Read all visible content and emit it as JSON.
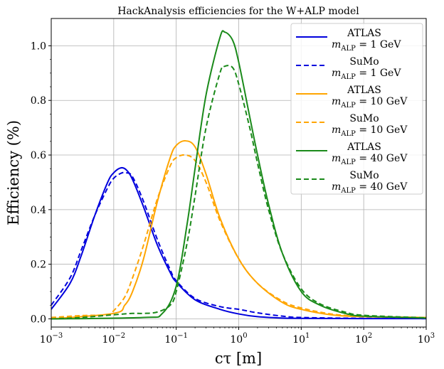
{
  "chart_data": {
    "type": "line",
    "title": "HackAnalysis efficiencies for the W+ALP model",
    "xlabel": "cτ [m]",
    "ylabel": "Efficiency (%)",
    "xscale": "log",
    "xlim": [
      0.001,
      1000
    ],
    "ylim": [
      -0.03,
      1.1
    ],
    "grid": true,
    "legend_position": "top-right",
    "x_ticks": [
      {
        "value": 0.001,
        "base": "10",
        "exp": "−3"
      },
      {
        "value": 0.01,
        "base": "10",
        "exp": "−2"
      },
      {
        "value": 0.1,
        "base": "10",
        "exp": "−1"
      },
      {
        "value": 1,
        "base": "10",
        "exp": "0"
      },
      {
        "value": 10,
        "base": "10",
        "exp": "1"
      },
      {
        "value": 100,
        "base": "10",
        "exp": "2"
      },
      {
        "value": 1000,
        "base": "10",
        "exp": "3"
      }
    ],
    "y_ticks": [
      {
        "value": 0.0,
        "label": "0.0"
      },
      {
        "value": 0.2,
        "label": "0.2"
      },
      {
        "value": 0.4,
        "label": "0.4"
      },
      {
        "value": 0.6,
        "label": "0.6"
      },
      {
        "value": 0.8,
        "label": "0.8"
      },
      {
        "value": 1.0,
        "label": "1.0"
      }
    ],
    "series": [
      {
        "name_main": "ATLAS",
        "name_mass": "1 GeV",
        "color": "#0000dd",
        "style": "solid",
        "x": [
          0.001,
          0.002,
          0.003,
          0.005,
          0.008,
          0.01,
          0.013,
          0.016,
          0.02,
          0.03,
          0.05,
          0.08,
          0.1,
          0.2,
          0.5,
          1,
          2,
          5,
          10,
          100,
          1000
        ],
        "y": [
          0.035,
          0.13,
          0.23,
          0.38,
          0.5,
          0.535,
          0.553,
          0.545,
          0.51,
          0.41,
          0.27,
          0.17,
          0.135,
          0.07,
          0.035,
          0.018,
          0.008,
          0.003,
          0.002,
          0.001,
          0.001
        ]
      },
      {
        "name_main": "SuMo",
        "name_mass": "1 GeV",
        "color": "#0000dd",
        "style": "dashed",
        "x": [
          0.001,
          0.002,
          0.003,
          0.005,
          0.008,
          0.01,
          0.013,
          0.016,
          0.02,
          0.03,
          0.05,
          0.08,
          0.1,
          0.2,
          0.5,
          1,
          2,
          5,
          10,
          100,
          1000
        ],
        "y": [
          0.05,
          0.15,
          0.25,
          0.38,
          0.48,
          0.515,
          0.533,
          0.535,
          0.52,
          0.43,
          0.29,
          0.18,
          0.14,
          0.075,
          0.045,
          0.035,
          0.022,
          0.01,
          0.005,
          0.002,
          0.001
        ]
      },
      {
        "name_main": "ATLAS",
        "name_mass": "10 GeV",
        "color": "#ffa500",
        "style": "solid",
        "x": [
          0.001,
          0.01,
          0.015,
          0.02,
          0.03,
          0.05,
          0.08,
          0.1,
          0.14,
          0.2,
          0.3,
          0.5,
          1,
          2,
          5,
          10,
          30,
          100,
          1000
        ],
        "y": [
          0.0,
          0.02,
          0.05,
          0.1,
          0.22,
          0.43,
          0.59,
          0.635,
          0.652,
          0.63,
          0.53,
          0.37,
          0.22,
          0.13,
          0.06,
          0.035,
          0.015,
          0.008,
          0.005
        ]
      },
      {
        "name_main": "SuMo",
        "name_mass": "10 GeV",
        "color": "#ffa500",
        "style": "dashed",
        "x": [
          0.001,
          0.003,
          0.008,
          0.01,
          0.015,
          0.02,
          0.03,
          0.05,
          0.08,
          0.1,
          0.14,
          0.2,
          0.3,
          0.5,
          1,
          2,
          5,
          10,
          30,
          100,
          1000
        ],
        "y": [
          0.005,
          0.012,
          0.015,
          0.03,
          0.08,
          0.15,
          0.27,
          0.44,
          0.56,
          0.59,
          0.6,
          0.58,
          0.5,
          0.36,
          0.22,
          0.13,
          0.065,
          0.04,
          0.018,
          0.009,
          0.005
        ]
      },
      {
        "name_main": "ATLAS",
        "name_mass": "40 GeV",
        "color": "#1a8a1a",
        "style": "solid",
        "x": [
          0.001,
          0.03,
          0.06,
          0.1,
          0.15,
          0.2,
          0.3,
          0.5,
          0.6,
          0.8,
          1,
          1.5,
          2,
          3,
          5,
          10,
          20,
          50,
          100,
          1000
        ],
        "y": [
          0.0,
          0.005,
          0.02,
          0.12,
          0.35,
          0.55,
          0.82,
          1.03,
          1.05,
          1.02,
          0.94,
          0.74,
          0.6,
          0.42,
          0.24,
          0.1,
          0.05,
          0.02,
          0.01,
          0.003
        ]
      },
      {
        "name_main": "SuMo",
        "name_mass": "40 GeV",
        "color": "#1a8a1a",
        "style": "dashed",
        "x": [
          0.001,
          0.003,
          0.01,
          0.02,
          0.03,
          0.05,
          0.08,
          0.1,
          0.15,
          0.2,
          0.3,
          0.5,
          0.6,
          0.8,
          1,
          1.5,
          2,
          3,
          5,
          10,
          20,
          50,
          100,
          1000
        ],
        "y": [
          0.0,
          0.005,
          0.015,
          0.02,
          0.02,
          0.025,
          0.05,
          0.1,
          0.28,
          0.45,
          0.7,
          0.9,
          0.925,
          0.92,
          0.86,
          0.7,
          0.57,
          0.4,
          0.24,
          0.11,
          0.055,
          0.025,
          0.013,
          0.004
        ]
      }
    ]
  }
}
